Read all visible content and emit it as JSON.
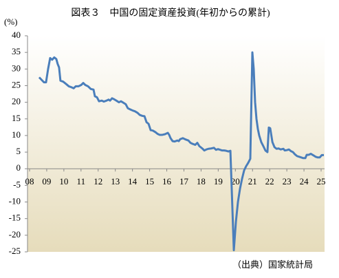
{
  "chart_data": {
    "type": "line",
    "title": "図表３　中国の固定資産投資(年初からの累計)",
    "y_label": "(%)",
    "source": "（出典）国家統計局",
    "xlim": [
      2007.88,
      2025.2
    ],
    "ylim": [
      -25,
      40
    ],
    "yticks": [
      -25,
      -20,
      -15,
      -10,
      -5,
      0,
      5,
      10,
      15,
      20,
      25,
      30,
      35,
      40
    ],
    "xticks": [
      {
        "value": 2008,
        "label": "08"
      },
      {
        "value": 2009,
        "label": "09"
      },
      {
        "value": 2010,
        "label": "10"
      },
      {
        "value": 2011,
        "label": "11"
      },
      {
        "value": 2012,
        "label": "12"
      },
      {
        "value": 2013,
        "label": "13"
      },
      {
        "value": 2014,
        "label": "14"
      },
      {
        "value": 2015,
        "label": "15"
      },
      {
        "value": 2016,
        "label": "16"
      },
      {
        "value": 2017,
        "label": "17"
      },
      {
        "value": 2018,
        "label": "18"
      },
      {
        "value": 2019,
        "label": "19"
      },
      {
        "value": 2020,
        "label": "20"
      },
      {
        "value": 2021,
        "label": "21"
      },
      {
        "value": 2022,
        "label": "22"
      },
      {
        "value": 2023,
        "label": "23"
      },
      {
        "value": 2024,
        "label": "24"
      },
      {
        "value": 2025,
        "label": "25"
      }
    ],
    "grid": false,
    "series": [
      {
        "color": "#4a7ebb",
        "x": [
          2008.56,
          2008.84,
          2008.96,
          2009.08,
          2009.2,
          2009.32,
          2009.44,
          2009.56,
          2009.64,
          2009.72,
          2009.8,
          2009.96,
          2010.13,
          2010.29,
          2010.45,
          2010.57,
          2010.69,
          2010.85,
          2011.01,
          2011.13,
          2011.25,
          2011.41,
          2011.57,
          2011.73,
          2011.81,
          2011.93,
          2012.05,
          2012.21,
          2012.33,
          2012.49,
          2012.61,
          2012.69,
          2012.81,
          2012.93,
          2013.09,
          2013.21,
          2013.33,
          2013.49,
          2013.61,
          2013.73,
          2013.89,
          2014.02,
          2014.14,
          2014.3,
          2014.42,
          2014.58,
          2014.7,
          2014.82,
          2014.94,
          2015.06,
          2015.18,
          2015.34,
          2015.46,
          2015.58,
          2015.74,
          2015.9,
          2016.06,
          2016.14,
          2016.22,
          2016.34,
          2016.46,
          2016.62,
          2016.7,
          2016.78,
          2016.94,
          2017.1,
          2017.26,
          2017.38,
          2017.5,
          2017.66,
          2017.78,
          2017.9,
          2018.07,
          2018.19,
          2018.31,
          2018.43,
          2018.59,
          2018.75,
          2018.87,
          2018.99,
          2019.11,
          2019.23,
          2019.35,
          2019.47,
          2019.59,
          2019.71,
          2019.91,
          2020.03,
          2020.15,
          2020.27,
          2020.39,
          2020.51,
          2020.63,
          2020.75,
          2020.87,
          2020.99,
          2021.07,
          2021.15,
          2021.23,
          2021.31,
          2021.39,
          2021.51,
          2021.63,
          2021.75,
          2021.87,
          2021.95,
          2022.03,
          2022.16,
          2022.28,
          2022.4,
          2022.52,
          2022.64,
          2022.8,
          2022.88,
          2023.0,
          2023.12,
          2023.24,
          2023.36,
          2023.48,
          2023.6,
          2023.72,
          2023.84,
          2023.96,
          2024.08,
          2024.16,
          2024.28,
          2024.4,
          2024.56,
          2024.68,
          2024.8,
          2024.92,
          2025.04,
          2025.16
        ],
        "values": [
          27.5,
          26,
          26,
          30,
          33.3,
          32.8,
          33.5,
          33,
          31.5,
          30.5,
          26.5,
          26.2,
          25.5,
          24.8,
          24.5,
          24.2,
          24.8,
          24.8,
          25.2,
          25.8,
          25.2,
          24.8,
          24,
          23.8,
          21.8,
          21.5,
          20.3,
          20.5,
          20.2,
          20.5,
          20.8,
          20.5,
          21.2,
          20.9,
          20.4,
          20,
          20.3,
          19.8,
          19.4,
          18.2,
          17.8,
          17.5,
          17.3,
          16.8,
          16.2,
          15.9,
          15.8,
          14,
          13.5,
          11.6,
          11.5,
          11,
          10.5,
          10.2,
          10.2,
          10.4,
          10.8,
          10.2,
          9.2,
          8.3,
          8.2,
          8.5,
          8.3,
          8.9,
          9.2,
          8.8,
          8.5,
          7.8,
          7.5,
          7.2,
          7.8,
          6.8,
          6.1,
          5.5,
          5.8,
          6,
          6.1,
          6.3,
          5.7,
          5.9,
          5.7,
          5.5,
          5.5,
          5.4,
          5.2,
          5.4,
          -24.5,
          -16,
          -10,
          -6,
          -3,
          -0.5,
          0.8,
          1.8,
          3,
          35,
          30,
          20,
          15,
          12,
          10,
          8,
          6.8,
          5.5,
          5,
          12.4,
          12.2,
          8,
          6.5,
          6,
          6.1,
          5.8,
          6,
          5.5,
          5.6,
          5.8,
          5.3,
          5,
          4.3,
          3.8,
          3.6,
          3.4,
          3.2,
          3.2,
          4.2,
          4.2,
          4.5,
          4,
          3.6,
          3.4,
          3.4,
          4.1,
          4.1
        ]
      }
    ]
  }
}
